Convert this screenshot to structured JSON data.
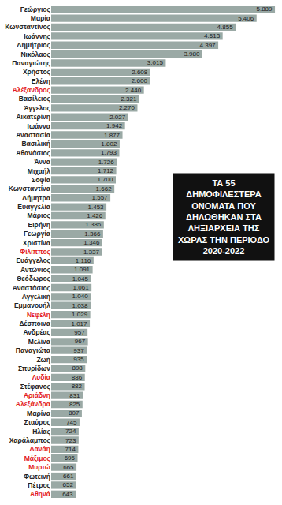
{
  "chart_data": {
    "type": "bar",
    "orientation": "horizontal",
    "title": "ΤΑ 55 ΔΗΜΟΦΙΛΕΣΤΕΡΑ ΟΝΟΜΑΤΑ ΠΟΥ ΔΗΛΩΘΗΚΑΝ ΣΤΑ ΛΗΞΙΑΡΧΕΙΑ ΤΗΣ ΧΩΡΑΣ ΤΗΝ ΠΕΡΙΟΔΟ 2020-2022",
    "categories": [
      "Γεώργιος",
      "Μαρία",
      "Κωνσταντίνος",
      "Ιωάννης",
      "Δημήτριος",
      "Νικόλαος",
      "Παναγιώτης",
      "Χρήστος",
      "Ελένη",
      "Αλέξανδρος",
      "Βασίλειος",
      "Άγγελος",
      "Αικατερίνη",
      "Ιωάννα",
      "Αναστασία",
      "Βασιλική",
      "Αθανάσιος",
      "Άννα",
      "Μιχαήλ",
      "Σοφία",
      "Κωνσταντίνα",
      "Δήμητρα",
      "Ευαγγελία",
      "Μάριος",
      "Ειρήνη",
      "Γεωργία",
      "Χριστίνα",
      "Φίλιππος",
      "Ευάγγελος",
      "Αντώνιος",
      "Θεόδωρος",
      "Αναστάσιος",
      "Αγγελική",
      "Εμμανουήλ",
      "Νεφέλη",
      "Δέσποινα",
      "Ανδρέας",
      "Μελίνα",
      "Παναγιώτα",
      "Ζωή",
      "Σπυρίδων",
      "Λυδία",
      "Στέφανος",
      "Αριάδνη",
      "Αλεξάνδρα",
      "Μαρίνα",
      "Σταύρος",
      "Ηλίας",
      "Χαράλαμπος",
      "Δανάη",
      "Μάξιμος",
      "Μυρτώ",
      "Φωτεινή",
      "Πέτρος",
      "Αθηνά"
    ],
    "values": [
      5889,
      5406,
      4855,
      4513,
      4397,
      3980,
      3015,
      2608,
      2600,
      2440,
      2321,
      2270,
      2027,
      1942,
      1877,
      1802,
      1793,
      1726,
      1712,
      1700,
      1662,
      1557,
      1453,
      1426,
      1386,
      1366,
      1346,
      1337,
      1116,
      1091,
      1045,
      1061,
      1040,
      1038,
      1029,
      1017,
      957,
      967,
      937,
      935,
      898,
      886,
      882,
      831,
      825,
      807,
      745,
      724,
      723,
      714,
      695,
      665,
      661,
      652,
      643
    ],
    "value_labels": [
      "5.889",
      "5.406",
      "4.855",
      "4.513",
      "4.397",
      "3.980",
      "3.015",
      "2.608",
      "2.600",
      "2.440",
      "2.321",
      "2.270",
      "2.027",
      "1.942",
      "1.877",
      "1.802",
      "1.793",
      "1.726",
      "1.712",
      "1.700",
      "1.662",
      "1.557",
      "1.453",
      "1.426",
      "1.386",
      "1.366",
      "1.346",
      "1.337",
      "1.116",
      "1.091",
      "1.045",
      "1.061",
      "1.040",
      "1.038",
      "1.029",
      "1.017",
      "957",
      "967",
      "937",
      "935",
      "898",
      "886",
      "882",
      "831",
      "825",
      "807",
      "745",
      "724",
      "723",
      "714",
      "695",
      "665",
      "661",
      "652",
      "643"
    ],
    "data_labels": true,
    "color": "#9aa9a5",
    "colors": [
      "#222222",
      "#222222",
      "#222222",
      "#222222",
      "#222222",
      "#222222",
      "#222222",
      "#222222",
      "#222222",
      "#e3221c",
      "#222222",
      "#222222",
      "#222222",
      "#222222",
      "#222222",
      "#222222",
      "#222222",
      "#222222",
      "#222222",
      "#222222",
      "#222222",
      "#222222",
      "#222222",
      "#222222",
      "#222222",
      "#222222",
      "#222222",
      "#e3221c",
      "#222222",
      "#222222",
      "#222222",
      "#222222",
      "#222222",
      "#222222",
      "#e3221c",
      "#222222",
      "#222222",
      "#222222",
      "#222222",
      "#222222",
      "#222222",
      "#e3221c",
      "#222222",
      "#e3221c",
      "#e3221c",
      "#222222",
      "#222222",
      "#222222",
      "#222222",
      "#e3221c",
      "#e3221c",
      "#e3221c",
      "#222222",
      "#222222",
      "#e3221c"
    ],
    "xlim": [
      0,
      5950
    ],
    "xticks": [],
    "tick_labels": "y",
    "grid": false
  }
}
